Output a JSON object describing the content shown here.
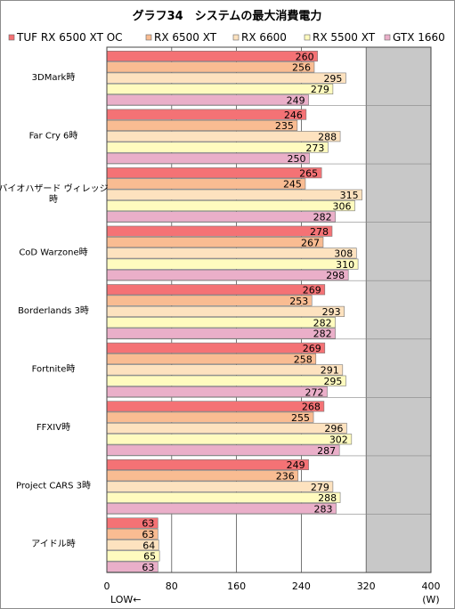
{
  "chart_data": {
    "type": "bar",
    "orientation": "horizontal",
    "title": "グラフ34　システムの最大消費電力",
    "categories": [
      "3DMark時",
      "Far Cry 6時",
      "バイオハザード ヴィレッジ時",
      "CoD Warzone時",
      "Borderlands 3時",
      "Fortnite時",
      "FFXIV時",
      "Project CARS 3時",
      "アイドル時"
    ],
    "category_lines": [
      [
        "3DMark時"
      ],
      [
        "Far Cry 6時"
      ],
      [
        "バイオハザード ヴィレッジ",
        "時"
      ],
      [
        "CoD Warzone時"
      ],
      [
        "Borderlands 3時"
      ],
      [
        "Fortnite時"
      ],
      [
        "FFXIV時"
      ],
      [
        "Project CARS 3時"
      ],
      [
        "アイドル時"
      ]
    ],
    "series": [
      {
        "name": "TUF RX 6500 XT OC",
        "color": "#f47275",
        "values": [
          260,
          246,
          265,
          278,
          269,
          269,
          268,
          249,
          63
        ]
      },
      {
        "name": "RX 6500 XT",
        "color": "#f9bc92",
        "values": [
          256,
          235,
          245,
          267,
          253,
          258,
          255,
          236,
          63
        ]
      },
      {
        "name": "RX 6600",
        "color": "#fde2bf",
        "values": [
          295,
          288,
          315,
          308,
          293,
          291,
          296,
          279,
          64
        ]
      },
      {
        "name": "RX 5500 XT",
        "color": "#fffbbf",
        "values": [
          279,
          273,
          306,
          310,
          282,
          295,
          302,
          288,
          65
        ]
      },
      {
        "name": "GTX 1660",
        "color": "#eaafc9",
        "values": [
          249,
          250,
          282,
          298,
          282,
          272,
          287,
          283,
          63
        ]
      }
    ],
    "xlim": [
      0,
      400
    ],
    "xticks": [
      0,
      80,
      160,
      240,
      320,
      400
    ],
    "xunit": "(W)",
    "xnote": "LOW←",
    "shaded_region": [
      320,
      400
    ],
    "plot_bg": "#ffffff",
    "shade_color": "#c8c8c8",
    "grid": true,
    "legend_position": "top"
  }
}
